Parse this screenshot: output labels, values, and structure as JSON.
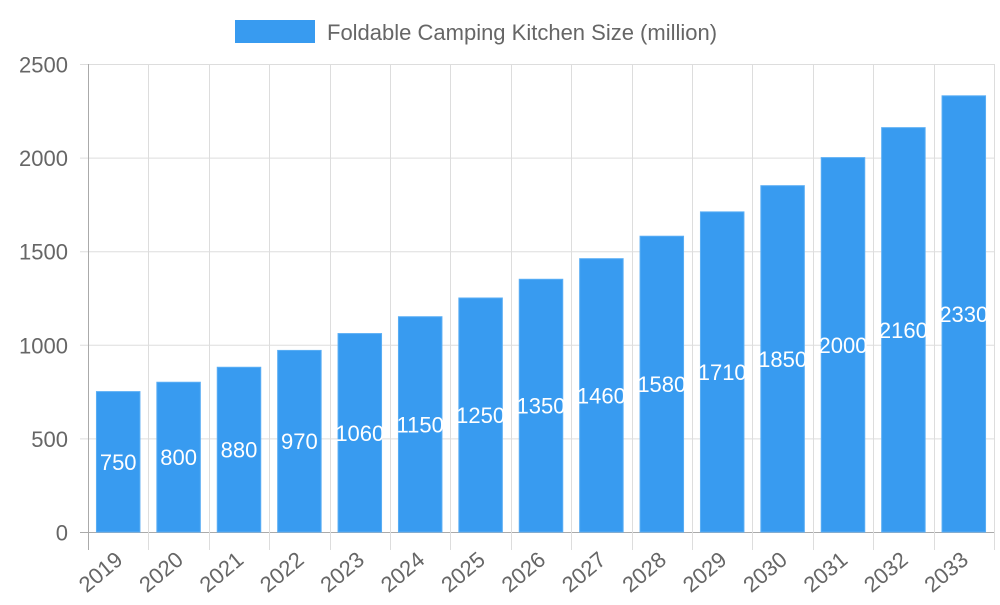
{
  "chart_data": {
    "type": "bar",
    "title": "",
    "xlabel": "",
    "ylabel": "",
    "categories": [
      "2019",
      "2020",
      "2021",
      "2022",
      "2023",
      "2024",
      "2025",
      "2026",
      "2027",
      "2028",
      "2029",
      "2030",
      "2031",
      "2032",
      "2033"
    ],
    "series": [
      {
        "name": "Foldable Camping Kitchen Size (million)",
        "values": [
          750,
          800,
          880,
          970,
          1060,
          1150,
          1250,
          1350,
          1460,
          1580,
          1710,
          1850,
          2000,
          2160,
          2330
        ]
      }
    ],
    "ylim": [
      0,
      2500
    ],
    "yticks": [
      0,
      500,
      1000,
      1500,
      2000,
      2500
    ],
    "grid": true,
    "legend": "top",
    "data_labels": "inside-center",
    "colors": {
      "bar": "#389BF0",
      "bar_border": "#5AAEF5",
      "label": "#ffffff",
      "text": "#666666",
      "grid": "#dddddd",
      "axis": "#aaaaaa"
    }
  }
}
